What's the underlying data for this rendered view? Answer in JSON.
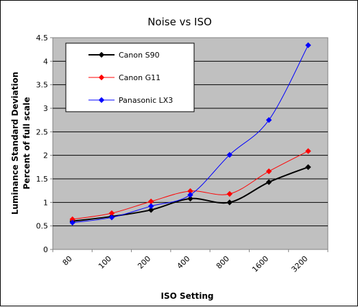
{
  "chart_data": {
    "type": "line",
    "title": "Noise vs ISO",
    "xlabel": "ISO Setting",
    "ylabel": [
      "Luminance Standard Deviation",
      "Percent of full scale"
    ],
    "categories": [
      "80",
      "100",
      "200",
      "400",
      "800",
      "1600",
      "3200"
    ],
    "ylim": [
      0,
      4.5
    ],
    "yticks": [
      "0",
      "0.5",
      "1",
      "1.5",
      "2",
      "2.5",
      "3",
      "3.5",
      "4",
      "4.5"
    ],
    "grid": true,
    "legend_position": "top-left",
    "plot_background": "#c0c0c0",
    "series": [
      {
        "name": "Canon S90",
        "color": "#000000",
        "values": [
          0.6,
          0.7,
          0.84,
          1.08,
          1.0,
          1.43,
          1.75
        ]
      },
      {
        "name": "Canon G11",
        "color": "#ff0000",
        "values": [
          0.64,
          0.77,
          1.02,
          1.24,
          1.18,
          1.66,
          2.09
        ]
      },
      {
        "name": "Panasonic LX3",
        "color": "#0000ff",
        "values": [
          0.57,
          0.68,
          0.92,
          1.16,
          2.01,
          2.75,
          4.34
        ]
      }
    ]
  }
}
